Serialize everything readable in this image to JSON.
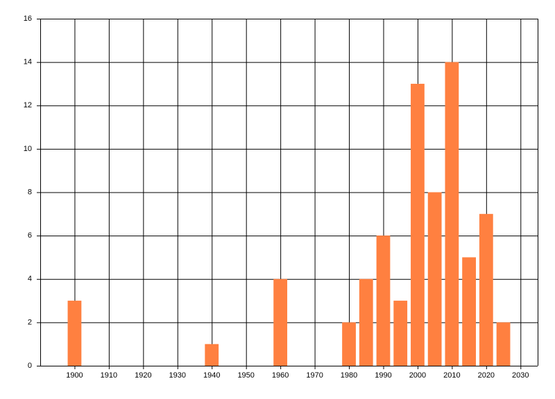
{
  "chart_data": {
    "type": "bar",
    "x": [
      1900,
      1940,
      1960,
      1980,
      1985,
      1990,
      1995,
      2000,
      2005,
      2010,
      2015,
      2020,
      2025
    ],
    "values": [
      3,
      1,
      4,
      2,
      4,
      6,
      3,
      13,
      8,
      14,
      5,
      7,
      2
    ],
    "color": "#ff8040",
    "xlim": [
      1890,
      2035
    ],
    "xticks": [
      1900,
      1910,
      1920,
      1930,
      1940,
      1950,
      1960,
      1970,
      1980,
      1990,
      2000,
      2010,
      2020,
      2030
    ],
    "ylim": [
      0,
      16
    ],
    "yticks": [
      0,
      2,
      4,
      6,
      8,
      10,
      12,
      14,
      16
    ],
    "grid": true
  }
}
